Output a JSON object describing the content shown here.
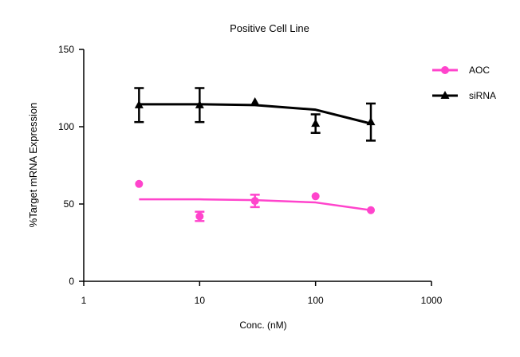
{
  "chart_data": {
    "type": "line",
    "title": "Positive Cell Line",
    "xlabel": "Conc. (nM)",
    "ylabel": "%Target  mRNA  Expression",
    "xscale": "log",
    "xlim": [
      1,
      1000
    ],
    "ylim": [
      0,
      150
    ],
    "xticks": [
      1,
      10,
      100,
      1000
    ],
    "xtick_labels": [
      "1",
      "10",
      "100",
      "1000"
    ],
    "yticks": [
      0,
      50,
      100,
      150
    ],
    "ytick_labels": [
      "0",
      "50",
      "100",
      "150"
    ],
    "legend_position": "top-right",
    "series": [
      {
        "name": "AOC",
        "color": "#ff44cc",
        "marker": "circle",
        "x": [
          3,
          10,
          30,
          100,
          300
        ],
        "y": [
          63,
          42,
          52,
          55,
          46
        ],
        "err": [
          0,
          3,
          4,
          0,
          0
        ],
        "fit": [
          [
            3,
            53
          ],
          [
            10,
            53
          ],
          [
            30,
            52.5
          ],
          [
            100,
            51
          ],
          [
            300,
            46
          ]
        ]
      },
      {
        "name": "siRNA",
        "color": "#000000",
        "marker": "triangle",
        "x": [
          3,
          10,
          30,
          100,
          300
        ],
        "y": [
          114,
          114,
          116,
          102,
          103
        ],
        "err": [
          11,
          11,
          0,
          6,
          12
        ],
        "fit": [
          [
            3,
            114.5
          ],
          [
            10,
            114.5
          ],
          [
            30,
            114
          ],
          [
            100,
            111
          ],
          [
            300,
            102
          ]
        ]
      }
    ]
  }
}
